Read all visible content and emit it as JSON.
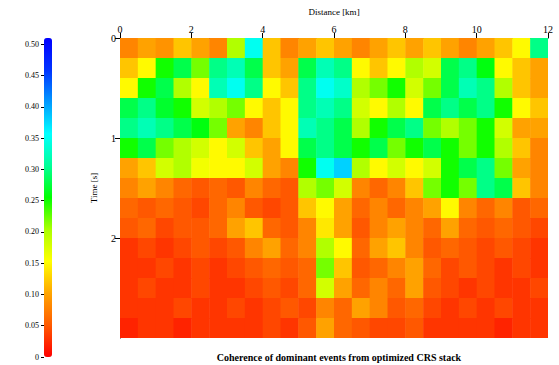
{
  "chart_data": {
    "type": "heatmap",
    "title": "Coherence of dominant events from optimized CRS stack",
    "xlabel": "Distance [km]",
    "ylabel": "Time [s]",
    "xlim": [
      0,
      12
    ],
    "xticks": [
      0,
      2,
      4,
      6,
      8,
      10,
      12
    ],
    "ylim": [
      0,
      3
    ],
    "yticks": [
      0,
      1,
      2
    ],
    "x_bins": [
      0,
      0.5,
      1,
      1.5,
      2,
      2.5,
      3,
      3.5,
      4,
      4.5,
      5,
      5.5,
      6,
      6.5,
      7,
      7.5,
      8,
      8.5,
      9,
      9.5,
      10,
      10.5,
      11,
      11.5,
      12
    ],
    "y_bins": [
      0,
      0.2,
      0.4,
      0.6,
      0.8,
      1.0,
      1.2,
      1.4,
      1.6,
      1.8,
      2.0,
      2.2,
      2.4,
      2.6,
      2.8,
      3.0
    ],
    "values": [
      [
        0.08,
        0.1,
        0.09,
        0.12,
        0.1,
        0.08,
        0.2,
        0.35,
        0.12,
        0.08,
        0.1,
        0.12,
        0.1,
        0.08,
        0.1,
        0.12,
        0.1,
        0.12,
        0.1,
        0.08,
        0.1,
        0.12,
        0.15,
        0.3
      ],
      [
        0.12,
        0.15,
        0.25,
        0.28,
        0.22,
        0.3,
        0.32,
        0.28,
        0.12,
        0.1,
        0.28,
        0.32,
        0.3,
        0.15,
        0.12,
        0.15,
        0.2,
        0.18,
        0.28,
        0.3,
        0.26,
        0.15,
        0.12,
        0.1
      ],
      [
        0.15,
        0.25,
        0.28,
        0.2,
        0.15,
        0.32,
        0.35,
        0.3,
        0.15,
        0.12,
        0.3,
        0.35,
        0.33,
        0.2,
        0.22,
        0.25,
        0.18,
        0.22,
        0.28,
        0.32,
        0.3,
        0.2,
        0.12,
        0.1
      ],
      [
        0.28,
        0.3,
        0.27,
        0.25,
        0.18,
        0.2,
        0.22,
        0.15,
        0.12,
        0.15,
        0.3,
        0.32,
        0.3,
        0.18,
        0.15,
        0.2,
        0.15,
        0.28,
        0.3,
        0.28,
        0.3,
        0.25,
        0.15,
        0.12
      ],
      [
        0.3,
        0.32,
        0.3,
        0.28,
        0.26,
        0.22,
        0.1,
        0.08,
        0.12,
        0.15,
        0.32,
        0.3,
        0.28,
        0.2,
        0.25,
        0.28,
        0.3,
        0.22,
        0.2,
        0.22,
        0.25,
        0.18,
        0.1,
        0.1
      ],
      [
        0.25,
        0.28,
        0.22,
        0.2,
        0.18,
        0.15,
        0.18,
        0.12,
        0.1,
        0.15,
        0.28,
        0.3,
        0.28,
        0.25,
        0.28,
        0.22,
        0.25,
        0.28,
        0.25,
        0.22,
        0.25,
        0.2,
        0.12,
        0.08
      ],
      [
        0.1,
        0.12,
        0.18,
        0.2,
        0.16,
        0.15,
        0.15,
        0.18,
        0.1,
        0.08,
        0.25,
        0.35,
        0.38,
        0.2,
        0.15,
        0.18,
        0.15,
        0.18,
        0.25,
        0.28,
        0.3,
        0.22,
        0.1,
        0.08
      ],
      [
        0.08,
        0.1,
        0.08,
        0.06,
        0.05,
        0.06,
        0.05,
        0.08,
        0.06,
        0.05,
        0.2,
        0.22,
        0.18,
        0.08,
        0.06,
        0.08,
        0.12,
        0.22,
        0.25,
        0.22,
        0.3,
        0.28,
        0.12,
        0.08
      ],
      [
        0.06,
        0.05,
        0.06,
        0.05,
        0.04,
        0.06,
        0.08,
        0.05,
        0.04,
        0.05,
        0.12,
        0.15,
        0.1,
        0.06,
        0.08,
        0.06,
        0.08,
        0.1,
        0.15,
        0.08,
        0.06,
        0.08,
        0.05,
        0.06
      ],
      [
        0.05,
        0.06,
        0.04,
        0.05,
        0.05,
        0.06,
        0.1,
        0.12,
        0.06,
        0.05,
        0.08,
        0.14,
        0.1,
        0.05,
        0.08,
        0.1,
        0.08,
        0.06,
        0.1,
        0.06,
        0.05,
        0.06,
        0.05,
        0.04
      ],
      [
        0.03,
        0.04,
        0.03,
        0.04,
        0.05,
        0.04,
        0.05,
        0.08,
        0.1,
        0.06,
        0.08,
        0.2,
        0.15,
        0.06,
        0.1,
        0.12,
        0.08,
        0.05,
        0.06,
        0.05,
        0.04,
        0.05,
        0.04,
        0.03
      ],
      [
        0.03,
        0.03,
        0.04,
        0.03,
        0.04,
        0.03,
        0.04,
        0.05,
        0.06,
        0.05,
        0.06,
        0.22,
        0.12,
        0.05,
        0.06,
        0.08,
        0.1,
        0.06,
        0.04,
        0.05,
        0.04,
        0.03,
        0.04,
        0.03
      ],
      [
        0.03,
        0.04,
        0.03,
        0.03,
        0.04,
        0.03,
        0.03,
        0.04,
        0.05,
        0.04,
        0.06,
        0.18,
        0.1,
        0.06,
        0.08,
        0.06,
        0.1,
        0.05,
        0.04,
        0.03,
        0.04,
        0.03,
        0.03,
        0.04
      ],
      [
        0.03,
        0.03,
        0.03,
        0.04,
        0.03,
        0.03,
        0.04,
        0.03,
        0.04,
        0.05,
        0.04,
        0.08,
        0.06,
        0.1,
        0.08,
        0.05,
        0.06,
        0.04,
        0.03,
        0.04,
        0.03,
        0.04,
        0.03,
        0.03
      ],
      [
        0.02,
        0.03,
        0.03,
        0.02,
        0.03,
        0.03,
        0.03,
        0.03,
        0.04,
        0.03,
        0.05,
        0.1,
        0.06,
        0.05,
        0.04,
        0.04,
        0.05,
        0.03,
        0.03,
        0.03,
        0.03,
        0.02,
        0.03,
        0.03
      ]
    ],
    "colorbar_lim": [
      0,
      0.51
    ],
    "colorbar_ticks": [
      0,
      0.05,
      {
        "value": 0.1,
        "label": "0.10"
      },
      0.15,
      {
        "value": 0.2,
        "label": "0.20"
      },
      0.25,
      {
        "value": 0.3,
        "label": "0.30"
      },
      0.35,
      {
        "value": 0.4,
        "label": "0.40"
      },
      0.45,
      {
        "value": 0.5,
        "label": "0.50"
      }
    ]
  }
}
